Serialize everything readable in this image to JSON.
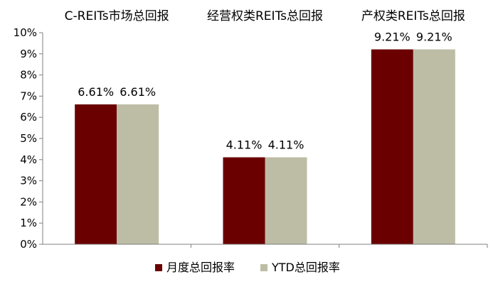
{
  "chart_data": {
    "type": "bar",
    "categories": [
      "C-REITs市场总回报",
      "经营权类REITs总回报",
      "产权类REITs总回报"
    ],
    "series": [
      {
        "name": "月度总回报率",
        "values": [
          6.61,
          4.11,
          9.21
        ],
        "labels": [
          "6.61%",
          "4.11%",
          "9.21%"
        ],
        "color": "#6b0000"
      },
      {
        "name": "YTD总回报率",
        "values": [
          6.61,
          4.11,
          9.21
        ],
        "labels": [
          "6.61%",
          "4.11%",
          "9.21%"
        ],
        "color": "#bdbda6"
      }
    ],
    "ylim": [
      0,
      10
    ],
    "yticks": [
      "0%",
      "1%",
      "2%",
      "3%",
      "4%",
      "5%",
      "6%",
      "7%",
      "8%",
      "9%",
      "10%"
    ],
    "grid": false,
    "legend_position": "bottom"
  }
}
